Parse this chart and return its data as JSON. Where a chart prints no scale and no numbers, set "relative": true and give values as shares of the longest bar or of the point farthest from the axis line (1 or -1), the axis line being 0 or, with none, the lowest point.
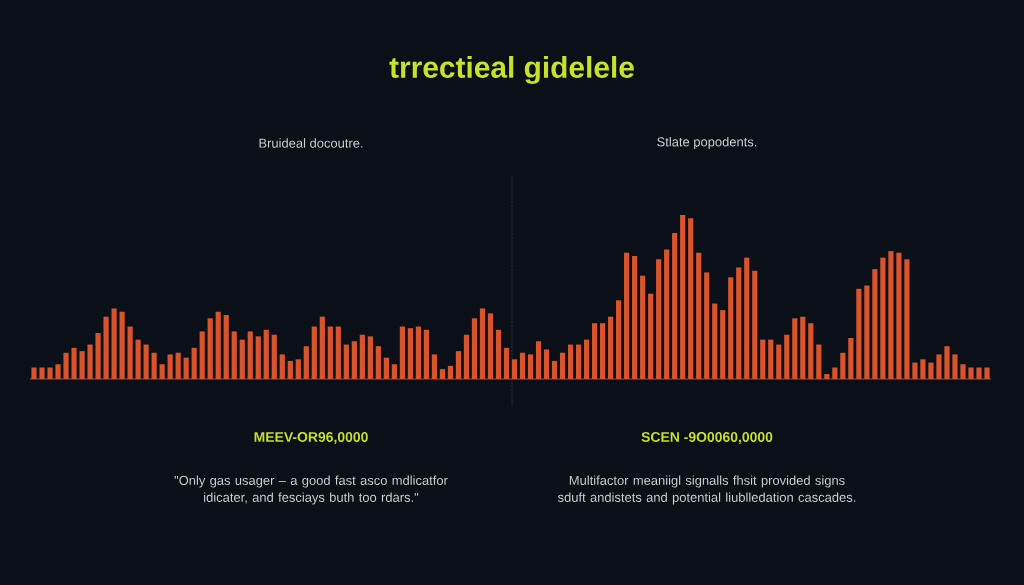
{
  "chart_data": {
    "type": "bar",
    "relative": true,
    "title": "trrectieal gidelele",
    "categories": [
      null,
      null,
      null,
      null,
      null,
      null,
      null,
      null,
      null,
      null,
      null,
      null,
      null,
      null,
      null,
      null,
      null,
      null,
      null,
      null,
      null,
      null,
      null,
      null,
      null,
      null,
      null,
      null,
      null,
      null,
      null,
      null,
      null,
      null,
      null,
      null,
      null,
      null,
      null,
      null,
      null,
      null,
      null,
      null,
      null,
      null,
      null,
      null,
      null,
      null,
      null,
      null,
      null,
      null,
      null,
      null,
      null,
      null,
      null,
      null,
      null,
      null,
      null,
      null,
      null,
      null,
      null,
      null,
      null,
      null,
      null,
      null,
      null,
      null,
      null,
      null,
      null,
      null,
      null,
      null,
      null,
      null,
      null,
      null,
      null,
      null,
      null,
      null,
      null,
      null,
      null,
      null,
      null,
      null,
      null,
      null,
      null,
      null,
      null,
      null,
      null,
      null,
      null,
      null,
      null,
      null,
      null,
      null,
      null,
      null,
      null,
      null,
      null,
      null,
      null,
      null,
      null,
      null,
      null,
      null
    ],
    "values": [
      0.07,
      0.07,
      0.07,
      0.09,
      0.16,
      0.19,
      0.17,
      0.21,
      0.28,
      0.38,
      0.43,
      0.41,
      0.32,
      0.24,
      0.21,
      0.16,
      0.09,
      0.15,
      0.16,
      0.13,
      0.19,
      0.29,
      0.37,
      0.41,
      0.39,
      0.29,
      0.24,
      0.29,
      0.26,
      0.3,
      0.27,
      0.15,
      0.11,
      0.12,
      0.2,
      0.32,
      0.38,
      0.32,
      0.32,
      0.21,
      0.23,
      0.27,
      0.26,
      0.2,
      0.13,
      0.09,
      0.32,
      0.31,
      0.32,
      0.3,
      0.15,
      0.06,
      0.08,
      0.17,
      0.27,
      0.37,
      0.43,
      0.4,
      0.3,
      0.19,
      0.12,
      0.16,
      0.15,
      0.23,
      0.18,
      0.11,
      0.16,
      0.21,
      0.21,
      0.24,
      0.34,
      0.34,
      0.38,
      0.48,
      0.77,
      0.75,
      0.63,
      0.52,
      0.73,
      0.79,
      0.89,
      1,
      0.98,
      0.77,
      0.65,
      0.46,
      0.42,
      0.62,
      0.68,
      0.74,
      0.66,
      0.24,
      0.24,
      0.21,
      0.27,
      0.37,
      0.38,
      0.34,
      0.21,
      0.03,
      0.07,
      0.16,
      0.25,
      0.55,
      0.57,
      0.67,
      0.74,
      0.78,
      0.77,
      0.73,
      0.1,
      0.12,
      0.1,
      0.15,
      0.2,
      0.15,
      0.09,
      0.07,
      0.07,
      0.07
    ],
    "color": "#d9542a",
    "annotations": [
      "Bruideal docoutre.",
      "Stlate popodents.",
      "MEEV-OR96,0000",
      "SCEN -9O0060,0000",
      "\"Only gas usager – a good fast asco mdlicatfor idicater, and fesciays buth too rdars.\"",
      "Multifactor meaniigl signalls fhsit provided signs sduft andistets and potential liublledation cascades."
    ]
  }
}
